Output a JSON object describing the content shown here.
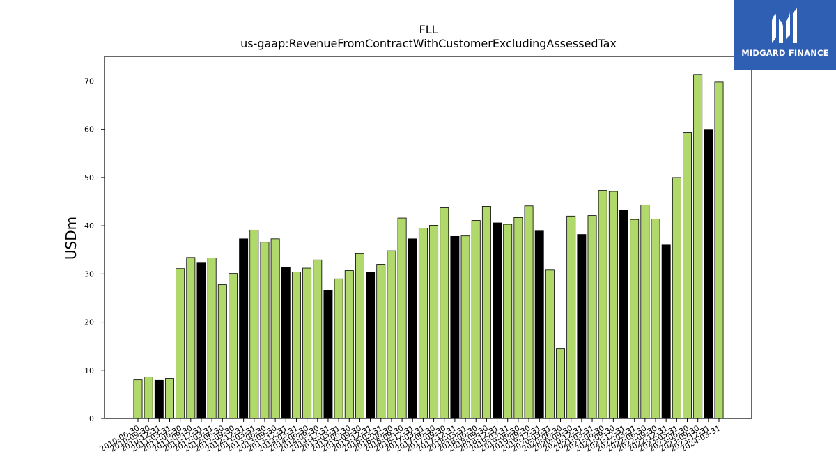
{
  "brand": {
    "name": "MIDGARD FINANCE",
    "icon": "midgard-m-logo-icon",
    "color": "#2f5fb3"
  },
  "chart_data": {
    "type": "bar",
    "title": "FLL",
    "subtitle": "us-gaap:RevenueFromContractWithCustomerExcludingAssessedTax",
    "xlabel": "",
    "ylabel": "USDm",
    "ylim": [
      0,
      75
    ],
    "yticks": [
      0,
      10,
      20,
      30,
      40,
      50,
      60,
      70
    ],
    "grid": false,
    "legend": "none",
    "colors": {
      "quarter": "#b0d86a",
      "fiscal_year_end": "#000000",
      "edge": "#000000"
    },
    "categories": [
      "2010-06-30",
      "2010-09-30",
      "2010-12-31",
      "2011-03-31",
      "2011-06-30",
      "2011-09-30",
      "2011-12-31",
      "2012-03-31",
      "2012-06-30",
      "2012-09-30",
      "2012-12-31",
      "2013-03-31",
      "2013-06-30",
      "2013-09-30",
      "2013-12-31",
      "2014-03-31",
      "2014-06-30",
      "2014-09-30",
      "2014-12-31",
      "2015-03-31",
      "2015-06-30",
      "2015-09-30",
      "2015-12-31",
      "2016-03-31",
      "2016-06-30",
      "2016-09-30",
      "2016-12-31",
      "2017-03-31",
      "2017-06-30",
      "2017-09-30",
      "2017-12-31",
      "2018-03-31",
      "2018-06-30",
      "2018-09-30",
      "2018-12-31",
      "2019-03-31",
      "2019-06-30",
      "2019-09-30",
      "2019-12-31",
      "2020-03-31",
      "2020-06-30",
      "2020-09-30",
      "2020-12-31",
      "2021-03-31",
      "2021-06-30",
      "2021-09-30",
      "2021-12-31",
      "2022-03-31",
      "2022-06-30",
      "2022-09-30",
      "2022-12-31",
      "2023-03-31",
      "2023-06-30",
      "2023-09-30",
      "2023-12-31",
      "2024-03-31"
    ],
    "values": [
      8.0,
      8.6,
      7.9,
      8.3,
      31.1,
      33.4,
      32.4,
      33.3,
      27.8,
      30.1,
      37.3,
      39.1,
      36.6,
      37.3,
      31.3,
      30.4,
      31.2,
      32.9,
      26.6,
      29.0,
      30.7,
      34.2,
      30.3,
      32.0,
      34.8,
      41.6,
      37.3,
      39.5,
      40.1,
      43.7,
      37.8,
      37.9,
      41.1,
      44.0,
      40.6,
      40.3,
      41.7,
      44.1,
      38.9,
      30.8,
      14.5,
      42.0,
      38.2,
      42.1,
      47.3,
      47.1,
      43.2,
      41.3,
      44.3,
      41.4,
      36.0,
      50.0,
      59.3,
      71.4,
      60.0,
      69.8
    ],
    "highlight": [
      false,
      false,
      true,
      false,
      false,
      false,
      true,
      false,
      false,
      false,
      true,
      false,
      false,
      false,
      true,
      false,
      false,
      false,
      true,
      false,
      false,
      false,
      true,
      false,
      false,
      false,
      true,
      false,
      false,
      false,
      true,
      false,
      false,
      false,
      true,
      false,
      false,
      false,
      true,
      false,
      false,
      false,
      true,
      false,
      false,
      false,
      true,
      false,
      false,
      false,
      true,
      false,
      false,
      false,
      true,
      false
    ]
  }
}
